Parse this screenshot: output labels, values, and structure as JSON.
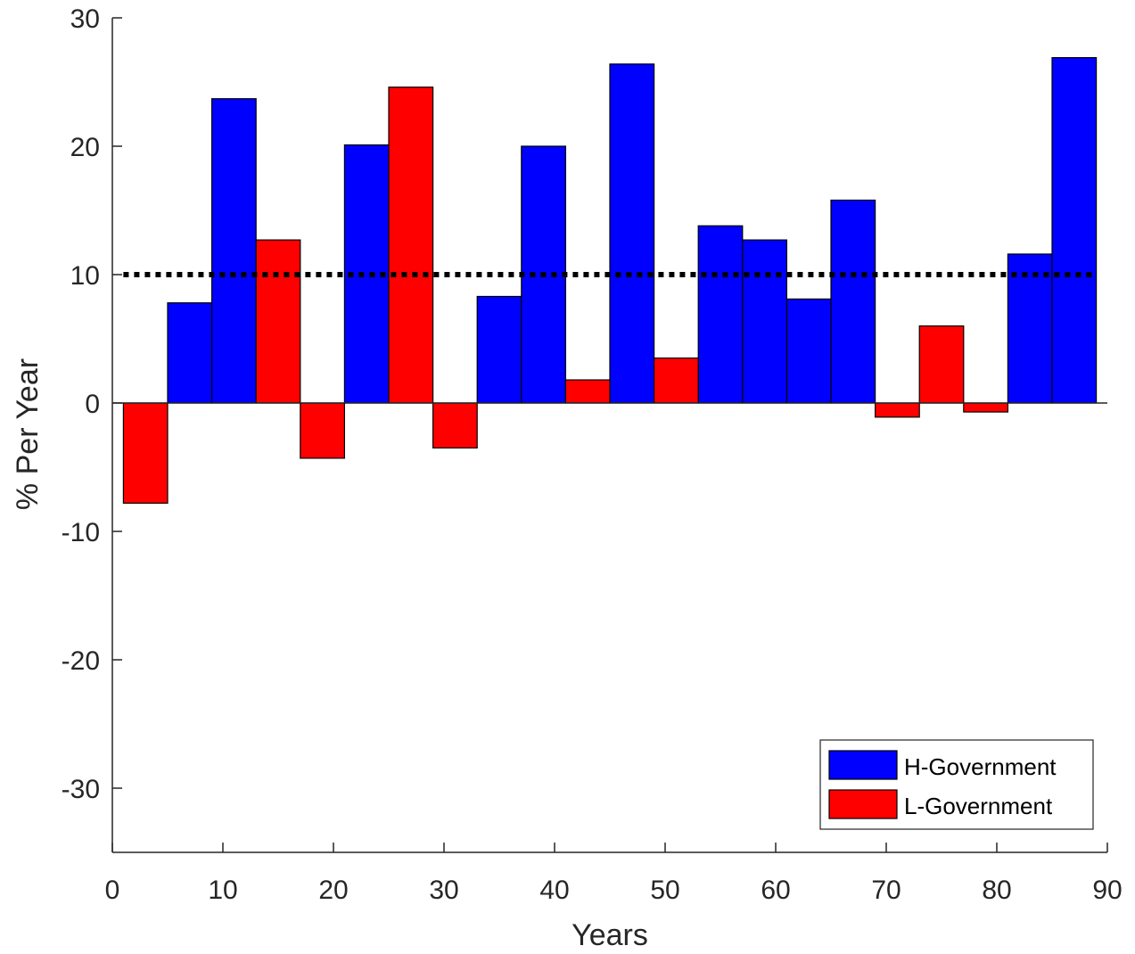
{
  "chart_data": {
    "type": "bar",
    "xlabel": "Years",
    "ylabel": "% Per Year",
    "xlim": [
      0,
      90
    ],
    "ylim": [
      -35,
      30
    ],
    "xticks": [
      0,
      10,
      20,
      30,
      40,
      50,
      60,
      70,
      80,
      90
    ],
    "yticks": [
      30,
      20,
      10,
      0,
      -10,
      -20,
      -30
    ],
    "bar_width_years": 4,
    "reference_line": {
      "value": 10,
      "style": "dotted",
      "color": "#000000"
    },
    "legend": {
      "placement": "bottom-right"
    },
    "series": [
      {
        "name": "H-Government",
        "color": "#0000ff",
        "bars": [
          {
            "x": 7,
            "value": 7.8
          },
          {
            "x": 11,
            "value": 23.7
          },
          {
            "x": 23,
            "value": 20.1
          },
          {
            "x": 35,
            "value": 8.3
          },
          {
            "x": 39,
            "value": 20.0
          },
          {
            "x": 47,
            "value": 26.4
          },
          {
            "x": 55,
            "value": 13.8
          },
          {
            "x": 59,
            "value": 12.7
          },
          {
            "x": 63,
            "value": 8.1
          },
          {
            "x": 67,
            "value": 15.8
          },
          {
            "x": 83,
            "value": 11.6
          },
          {
            "x": 87,
            "value": 26.9
          }
        ]
      },
      {
        "name": "L-Government",
        "color": "#ff0000",
        "bars": [
          {
            "x": 3,
            "value": -7.8
          },
          {
            "x": 15,
            "value": 12.7
          },
          {
            "x": 19,
            "value": -4.3
          },
          {
            "x": 27,
            "value": 24.6
          },
          {
            "x": 31,
            "value": -3.5
          },
          {
            "x": 43,
            "value": 1.8
          },
          {
            "x": 51,
            "value": 3.5
          },
          {
            "x": 71,
            "value": -1.1
          },
          {
            "x": 75,
            "value": 6.0
          },
          {
            "x": 79,
            "value": -0.7
          }
        ]
      }
    ]
  }
}
